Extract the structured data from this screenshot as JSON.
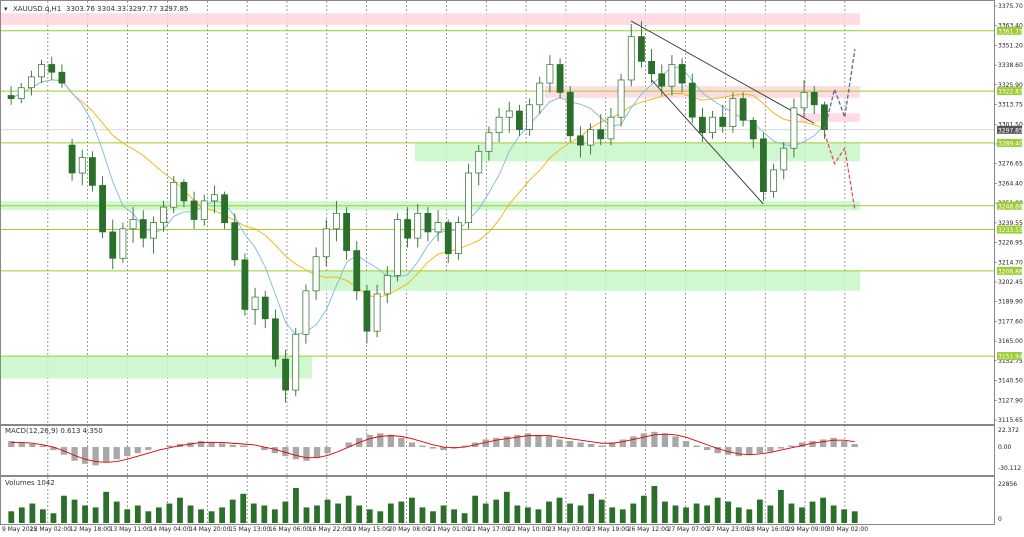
{
  "header": {
    "symbol": "XAUUSD.q,H1",
    "ohlc": "3303.76 3304.33 3297.77 3297.85"
  },
  "chart_data": {
    "type": "candlestick",
    "symbol": "XAUUSD.q",
    "timeframe": "H1",
    "price_ticks": [
      3375.7,
      3363.4,
      3351.2,
      3338.6,
      3325.9,
      3313.75,
      3301.5,
      3289.15,
      3276.65,
      3264.4,
      3251.8,
      3239.55,
      3226.95,
      3214.7,
      3202.45,
      3189.9,
      3177.6,
      3165.0,
      3152.75,
      3140.5,
      3127.9,
      3115.65
    ],
    "time_ticks": [
      "9 May 2025",
      "12 May 02:00",
      "12 May 18:00",
      "13 May 11:00",
      "14 May 04:00",
      "14 May 20:00",
      "15 May 13:00",
      "16 May 06:00",
      "16 May 22:00",
      "19 May 15:00",
      "20 May 08:00",
      "21 May 01:00",
      "21 May 17:00",
      "22 May 10:00",
      "23 May 03:00",
      "23 May 19:00",
      "26 May 12:00",
      "27 May 07:00",
      "27 May 23:00",
      "28 May 16:00",
      "29 May 09:00",
      "30 May 02:00"
    ],
    "price_range": [
      3112.0,
      3379.0
    ],
    "current_price": 3297.85,
    "levels": [
      {
        "price": 3361.73,
        "label": "3361.73",
        "color": "#9acd32"
      },
      {
        "price": 3322.83,
        "label": "3322.83",
        "color": "#9acd32"
      },
      {
        "price": 3289.4,
        "label": "3289.40",
        "color": "#9acd32"
      },
      {
        "price": 3248.88,
        "label": "3248.88",
        "color": "#9acd32"
      },
      {
        "price": 3233.53,
        "label": "3233.53",
        "color": "#9acd32"
      },
      {
        "price": 3206.88,
        "label": "3206.88",
        "color": "#9acd32"
      },
      {
        "price": 3151.94,
        "label": "3151.94",
        "color": "#9acd32"
      }
    ],
    "zones": [
      {
        "kind": "resistance",
        "from": 3365.5,
        "to": 3373.0,
        "color": "#ffd6dc"
      },
      {
        "kind": "resistance",
        "from": 3318.5,
        "to": 3326.0,
        "color": "#ffd6dc"
      },
      {
        "kind": "resistance",
        "from": 3303.0,
        "to": 3308.5,
        "color": "#ffd6dc"
      },
      {
        "kind": "support",
        "from": 3277.5,
        "to": 3289.4,
        "color": "#c8f7c8"
      },
      {
        "kind": "support",
        "from": 3246.0,
        "to": 3251.8,
        "color": "#c8f7c8"
      },
      {
        "kind": "support",
        "from": 3194.0,
        "to": 3206.88,
        "color": "#c8f7c8"
      },
      {
        "kind": "support",
        "from": 3137.5,
        "to": 3151.94,
        "color": "#c8f7c8"
      }
    ],
    "candles": [
      {
        "t": 0,
        "o": 3320,
        "h": 3326,
        "l": 3314,
        "c": 3318
      },
      {
        "t": 1,
        "o": 3318,
        "h": 3328,
        "l": 3315,
        "c": 3325
      },
      {
        "t": 2,
        "o": 3325,
        "h": 3336,
        "l": 3320,
        "c": 3332
      },
      {
        "t": 3,
        "o": 3332,
        "h": 3343,
        "l": 3328,
        "c": 3340
      },
      {
        "t": 4,
        "o": 3340,
        "h": 3345,
        "l": 3330,
        "c": 3335
      },
      {
        "t": 5,
        "o": 3335,
        "h": 3340,
        "l": 3325,
        "c": 3328
      },
      {
        "t": 6,
        "o": 3288,
        "h": 3292,
        "l": 3265,
        "c": 3270
      },
      {
        "t": 7,
        "o": 3270,
        "h": 3285,
        "l": 3262,
        "c": 3280
      },
      {
        "t": 8,
        "o": 3280,
        "h": 3284,
        "l": 3258,
        "c": 3262
      },
      {
        "t": 9,
        "o": 3262,
        "h": 3268,
        "l": 3228,
        "c": 3232
      },
      {
        "t": 10,
        "o": 3232,
        "h": 3240,
        "l": 3208,
        "c": 3215
      },
      {
        "t": 11,
        "o": 3215,
        "h": 3238,
        "l": 3212,
        "c": 3234
      },
      {
        "t": 12,
        "o": 3234,
        "h": 3248,
        "l": 3225,
        "c": 3240
      },
      {
        "t": 13,
        "o": 3240,
        "h": 3246,
        "l": 3222,
        "c": 3228
      },
      {
        "t": 14,
        "o": 3228,
        "h": 3242,
        "l": 3218,
        "c": 3238
      },
      {
        "t": 15,
        "o": 3238,
        "h": 3252,
        "l": 3232,
        "c": 3248
      },
      {
        "t": 16,
        "o": 3248,
        "h": 3268,
        "l": 3244,
        "c": 3264
      },
      {
        "t": 17,
        "o": 3264,
        "h": 3266,
        "l": 3248,
        "c": 3252
      },
      {
        "t": 18,
        "o": 3252,
        "h": 3258,
        "l": 3234,
        "c": 3240
      },
      {
        "t": 19,
        "o": 3240,
        "h": 3256,
        "l": 3236,
        "c": 3252
      },
      {
        "t": 20,
        "o": 3252,
        "h": 3262,
        "l": 3244,
        "c": 3256
      },
      {
        "t": 21,
        "o": 3256,
        "h": 3258,
        "l": 3234,
        "c": 3238
      },
      {
        "t": 22,
        "o": 3238,
        "h": 3244,
        "l": 3210,
        "c": 3214
      },
      {
        "t": 23,
        "o": 3214,
        "h": 3218,
        "l": 3178,
        "c": 3182
      },
      {
        "t": 24,
        "o": 3182,
        "h": 3196,
        "l": 3172,
        "c": 3190
      },
      {
        "t": 25,
        "o": 3190,
        "h": 3194,
        "l": 3170,
        "c": 3176
      },
      {
        "t": 26,
        "o": 3176,
        "h": 3182,
        "l": 3145,
        "c": 3150
      },
      {
        "t": 27,
        "o": 3150,
        "h": 3156,
        "l": 3122,
        "c": 3130
      },
      {
        "t": 28,
        "o": 3130,
        "h": 3170,
        "l": 3126,
        "c": 3166
      },
      {
        "t": 29,
        "o": 3166,
        "h": 3198,
        "l": 3160,
        "c": 3194
      },
      {
        "t": 30,
        "o": 3194,
        "h": 3222,
        "l": 3188,
        "c": 3216
      },
      {
        "t": 31,
        "o": 3216,
        "h": 3240,
        "l": 3210,
        "c": 3234
      },
      {
        "t": 32,
        "o": 3234,
        "h": 3252,
        "l": 3226,
        "c": 3244
      },
      {
        "t": 33,
        "o": 3244,
        "h": 3248,
        "l": 3214,
        "c": 3220
      },
      {
        "t": 34,
        "o": 3220,
        "h": 3226,
        "l": 3188,
        "c": 3194
      },
      {
        "t": 35,
        "o": 3194,
        "h": 3198,
        "l": 3160,
        "c": 3168
      },
      {
        "t": 36,
        "o": 3168,
        "h": 3198,
        "l": 3164,
        "c": 3192
      },
      {
        "t": 37,
        "o": 3192,
        "h": 3210,
        "l": 3186,
        "c": 3204
      },
      {
        "t": 38,
        "o": 3204,
        "h": 3244,
        "l": 3200,
        "c": 3240
      },
      {
        "t": 39,
        "o": 3240,
        "h": 3248,
        "l": 3222,
        "c": 3228
      },
      {
        "t": 40,
        "o": 3228,
        "h": 3250,
        "l": 3222,
        "c": 3244
      },
      {
        "t": 41,
        "o": 3244,
        "h": 3248,
        "l": 3226,
        "c": 3232
      },
      {
        "t": 42,
        "o": 3232,
        "h": 3246,
        "l": 3226,
        "c": 3238
      },
      {
        "t": 43,
        "o": 3238,
        "h": 3240,
        "l": 3212,
        "c": 3218
      },
      {
        "t": 44,
        "o": 3218,
        "h": 3242,
        "l": 3214,
        "c": 3238
      },
      {
        "t": 45,
        "o": 3238,
        "h": 3276,
        "l": 3234,
        "c": 3270
      },
      {
        "t": 46,
        "o": 3270,
        "h": 3288,
        "l": 3262,
        "c": 3284
      },
      {
        "t": 47,
        "o": 3284,
        "h": 3300,
        "l": 3278,
        "c": 3296
      },
      {
        "t": 48,
        "o": 3296,
        "h": 3312,
        "l": 3290,
        "c": 3306
      },
      {
        "t": 49,
        "o": 3306,
        "h": 3316,
        "l": 3296,
        "c": 3310
      },
      {
        "t": 50,
        "o": 3310,
        "h": 3314,
        "l": 3294,
        "c": 3298
      },
      {
        "t": 51,
        "o": 3298,
        "h": 3318,
        "l": 3294,
        "c": 3314
      },
      {
        "t": 52,
        "o": 3314,
        "h": 3332,
        "l": 3308,
        "c": 3328
      },
      {
        "t": 53,
        "o": 3328,
        "h": 3346,
        "l": 3322,
        "c": 3340
      },
      {
        "t": 54,
        "o": 3340,
        "h": 3344,
        "l": 3318,
        "c": 3322
      },
      {
        "t": 55,
        "o": 3322,
        "h": 3326,
        "l": 3290,
        "c": 3294
      },
      {
        "t": 56,
        "o": 3294,
        "h": 3300,
        "l": 3280,
        "c": 3288
      },
      {
        "t": 57,
        "o": 3288,
        "h": 3302,
        "l": 3282,
        "c": 3298
      },
      {
        "t": 58,
        "o": 3298,
        "h": 3308,
        "l": 3288,
        "c": 3292
      },
      {
        "t": 59,
        "o": 3292,
        "h": 3312,
        "l": 3288,
        "c": 3306
      },
      {
        "t": 60,
        "o": 3306,
        "h": 3334,
        "l": 3300,
        "c": 3330
      },
      {
        "t": 61,
        "o": 3330,
        "h": 3366,
        "l": 3326,
        "c": 3358
      },
      {
        "t": 62,
        "o": 3358,
        "h": 3368,
        "l": 3338,
        "c": 3342
      },
      {
        "t": 63,
        "o": 3342,
        "h": 3350,
        "l": 3328,
        "c": 3334
      },
      {
        "t": 64,
        "o": 3334,
        "h": 3340,
        "l": 3320,
        "c": 3326
      },
      {
        "t": 65,
        "o": 3326,
        "h": 3346,
        "l": 3320,
        "c": 3340
      },
      {
        "t": 66,
        "o": 3340,
        "h": 3344,
        "l": 3322,
        "c": 3328
      },
      {
        "t": 67,
        "o": 3328,
        "h": 3334,
        "l": 3302,
        "c": 3306
      },
      {
        "t": 68,
        "o": 3306,
        "h": 3312,
        "l": 3290,
        "c": 3296
      },
      {
        "t": 69,
        "o": 3296,
        "h": 3310,
        "l": 3292,
        "c": 3306
      },
      {
        "t": 70,
        "o": 3306,
        "h": 3314,
        "l": 3296,
        "c": 3300
      },
      {
        "t": 71,
        "o": 3300,
        "h": 3322,
        "l": 3296,
        "c": 3318
      },
      {
        "t": 72,
        "o": 3318,
        "h": 3322,
        "l": 3300,
        "c": 3304
      },
      {
        "t": 73,
        "o": 3304,
        "h": 3306,
        "l": 3286,
        "c": 3292
      },
      {
        "t": 74,
        "o": 3292,
        "h": 3296,
        "l": 3252,
        "c": 3258
      },
      {
        "t": 75,
        "o": 3258,
        "h": 3276,
        "l": 3254,
        "c": 3272
      },
      {
        "t": 76,
        "o": 3272,
        "h": 3290,
        "l": 3266,
        "c": 3286
      },
      {
        "t": 77,
        "o": 3286,
        "h": 3318,
        "l": 3280,
        "c": 3312
      },
      {
        "t": 78,
        "o": 3312,
        "h": 3330,
        "l": 3306,
        "c": 3322
      },
      {
        "t": 79,
        "o": 3322,
        "h": 3326,
        "l": 3308,
        "c": 3314
      },
      {
        "t": 80,
        "o": 3314,
        "h": 3316,
        "l": 3292,
        "c": 3298
      }
    ],
    "forecast_paths": [
      {
        "direction": "up",
        "color": "#5a6b8f",
        "points": [
          [
            80,
            3298
          ],
          [
            81,
            3324
          ],
          [
            82,
            3306
          ],
          [
            83,
            3350
          ]
        ]
      },
      {
        "direction": "down",
        "color": "#e0506a",
        "points": [
          [
            80,
            3296
          ],
          [
            81,
            3276
          ],
          [
            82,
            3286
          ],
          [
            83,
            3246
          ]
        ]
      }
    ],
    "trendlines": [
      {
        "name": "channel-upper",
        "points": [
          [
            61,
            3368
          ],
          [
            79,
            3302
          ]
        ],
        "color": "#333333"
      },
      {
        "name": "channel-lower",
        "points": [
          [
            63,
            3330
          ],
          [
            74,
            3250
          ]
        ],
        "color": "#333333"
      }
    ],
    "macd": {
      "label": "MACD(12,26,9) 0.613 4.350",
      "ticks": [
        "22.372",
        "0.00",
        "-30.112"
      ],
      "range": [
        -30.112,
        22.372
      ],
      "histogram": [
        8,
        6,
        4,
        2,
        -4,
        -10,
        -18,
        -22,
        -24,
        -20,
        -16,
        -12,
        -8,
        -4,
        0,
        2,
        4,
        6,
        8,
        7,
        5,
        3,
        2,
        0,
        -4,
        -8,
        -12,
        -16,
        -18,
        -14,
        -8,
        0,
        6,
        12,
        16,
        18,
        16,
        12,
        6,
        2,
        -2,
        -4,
        -2,
        2,
        6,
        10,
        12,
        14,
        16,
        18,
        16,
        14,
        10,
        8,
        6,
        4,
        2,
        6,
        10,
        14,
        18,
        20,
        18,
        14,
        8,
        2,
        -4,
        -8,
        -10,
        -12,
        -10,
        -8,
        -6,
        -2,
        2,
        6,
        8,
        10,
        12,
        8,
        4
      ],
      "signal": [
        6,
        6,
        5,
        3,
        0,
        -5,
        -11,
        -16,
        -19,
        -20,
        -19,
        -16,
        -12,
        -8,
        -4,
        -1,
        2,
        4,
        6,
        6,
        6,
        5,
        4,
        3,
        0,
        -3,
        -7,
        -11,
        -14,
        -14,
        -11,
        -6,
        0,
        6,
        11,
        14,
        15,
        14,
        11,
        7,
        3,
        0,
        -1,
        0,
        3,
        6,
        9,
        11,
        13,
        15,
        15,
        15,
        13,
        11,
        9,
        7,
        5,
        5,
        7,
        10,
        13,
        16,
        17,
        16,
        13,
        8,
        3,
        -2,
        -6,
        -9,
        -10,
        -9,
        -7,
        -4,
        -1,
        2,
        5,
        7,
        9,
        9,
        7
      ]
    },
    "volume": {
      "label": "Volumes 1042",
      "ticks": [
        "22856",
        "0"
      ],
      "max": 22856,
      "values": [
        6,
        8,
        10,
        7,
        5,
        14,
        12,
        9,
        8,
        16,
        11,
        7,
        9,
        6,
        8,
        10,
        13,
        9,
        7,
        6,
        8,
        12,
        15,
        10,
        9,
        7,
        11,
        18,
        8,
        9,
        12,
        10,
        14,
        9,
        7,
        6,
        10,
        11,
        13,
        8,
        6,
        9,
        7,
        5,
        14,
        10,
        12,
        16,
        9,
        8,
        7,
        11,
        13,
        10,
        9,
        15,
        12,
        8,
        7,
        10,
        14,
        19,
        11,
        9,
        8,
        10,
        9,
        13,
        11,
        8,
        7,
        12,
        9,
        17,
        10,
        8,
        11,
        13,
        9,
        7,
        6
      ]
    }
  }
}
